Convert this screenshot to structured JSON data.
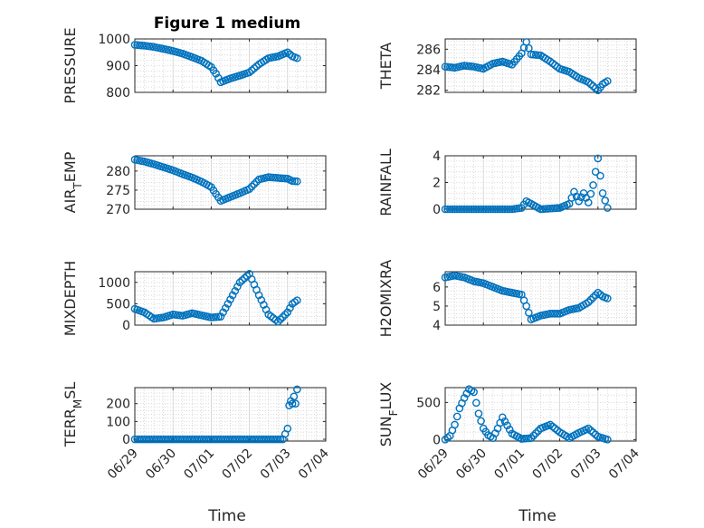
{
  "title": "Figure 1 medium",
  "x_tick_labels": [
    "06/29",
    "06/30",
    "07/01",
    "07/02",
    "07/03",
    "07/04"
  ],
  "xlabel": "Time",
  "marker_color": "#0072BD",
  "chart_data": [
    {
      "type": "scatter",
      "ylabel": "PRESSURE",
      "ylim": [
        800,
        1000
      ],
      "yticks": [
        800,
        900,
        1000
      ],
      "xlim": [
        "06/29",
        "07/04"
      ],
      "grid": true,
      "x": [
        "06/29 00:00",
        "06/29 06:00",
        "06/29 12:00",
        "06/29 18:00",
        "06/30 00:00",
        "06/30 06:00",
        "06/30 12:00",
        "06/30 18:00",
        "07/01 00:00",
        "07/01 03:00",
        "07/01 06:00",
        "07/01 12:00",
        "07/01 18:00",
        "07/02 00:00",
        "07/02 06:00",
        "07/02 12:00",
        "07/02 18:00",
        "07/03 00:00",
        "07/03 03:00",
        "07/03 06:00"
      ],
      "y": [
        978,
        975,
        970,
        963,
        955,
        945,
        932,
        918,
        895,
        870,
        838,
        852,
        863,
        875,
        905,
        928,
        935,
        950,
        935,
        928
      ]
    },
    {
      "type": "scatter",
      "ylabel": "THETA",
      "ylim": [
        281.8,
        287
      ],
      "yticks": [
        282,
        284,
        286
      ],
      "xlim": [
        "06/29",
        "07/04"
      ],
      "grid": true,
      "x": [
        "06/29 00:00",
        "06/29 06:00",
        "06/29 12:00",
        "06/29 18:00",
        "06/30 00:00",
        "06/30 06:00",
        "06/30 12:00",
        "06/30 18:00",
        "07/01 00:00",
        "07/01 03:00",
        "07/01 06:00",
        "07/01 12:00",
        "07/01 18:00",
        "07/02 00:00",
        "07/02 06:00",
        "07/02 12:00",
        "07/02 18:00",
        "07/03 00:00",
        "07/03 03:00",
        "07/03 06:00"
      ],
      "y": [
        284.3,
        284.2,
        284.4,
        284.3,
        284.1,
        284.6,
        284.8,
        284.5,
        285.6,
        286.7,
        285.5,
        285.4,
        284.8,
        284.1,
        283.8,
        283.2,
        282.8,
        282.0,
        282.6,
        282.9
      ]
    },
    {
      "type": "scatter",
      "ylabel": "AIR_TEMP",
      "ylim": [
        270,
        284
      ],
      "yticks": [
        270,
        275,
        280
      ],
      "xlim": [
        "06/29",
        "07/04"
      ],
      "grid": true,
      "x": [
        "06/29 00:00",
        "06/29 06:00",
        "06/29 12:00",
        "06/29 18:00",
        "06/30 00:00",
        "06/30 06:00",
        "06/30 12:00",
        "06/30 18:00",
        "07/01 00:00",
        "07/01 03:00",
        "07/01 06:00",
        "07/01 12:00",
        "07/01 18:00",
        "07/02 00:00",
        "07/02 06:00",
        "07/02 12:00",
        "07/02 18:00",
        "07/03 00:00",
        "07/03 03:00",
        "07/03 06:00"
      ],
      "y": [
        283,
        282.5,
        281.8,
        281,
        280.2,
        279.2,
        278.3,
        277.2,
        275.8,
        274,
        272.2,
        273.2,
        274.2,
        275.3,
        277.8,
        278.4,
        278.2,
        278.0,
        277.4,
        277.3
      ]
    },
    {
      "type": "scatter",
      "ylabel": "RAINFALL",
      "ylim": [
        0,
        4
      ],
      "yticks": [
        0,
        2,
        4
      ],
      "xlim": [
        "06/29",
        "07/04"
      ],
      "grid": true,
      "x": [
        "06/29 00:00",
        "06/29 12:00",
        "06/30 00:00",
        "06/30 12:00",
        "06/30 18:00",
        "07/01 00:00",
        "07/01 03:00",
        "07/01 06:00",
        "07/01 12:00",
        "07/02 00:00",
        "07/02 06:00",
        "07/02 09:00",
        "07/02 12:00",
        "07/02 15:00",
        "07/02 18:00",
        "07/02 21:00",
        "07/03 00:00",
        "07/03 03:00",
        "07/03 06:00"
      ],
      "y": [
        0,
        0,
        0,
        0,
        0,
        0.1,
        0.6,
        0.4,
        0,
        0.1,
        0.4,
        1.3,
        0.6,
        1.2,
        0.5,
        1.8,
        3.8,
        1.2,
        0.1
      ]
    },
    {
      "type": "scatter",
      "ylabel": "MIXDEPTH",
      "ylim": [
        0,
        1250
      ],
      "yticks": [
        0,
        500,
        1000
      ],
      "xlim": [
        "06/29",
        "07/04"
      ],
      "grid": true,
      "x": [
        "06/29 00:00",
        "06/29 06:00",
        "06/29 12:00",
        "06/29 18:00",
        "06/30 00:00",
        "06/30 06:00",
        "06/30 12:00",
        "06/30 18:00",
        "07/01 00:00",
        "07/01 06:00",
        "07/01 12:00",
        "07/01 18:00",
        "07/02 00:00",
        "07/02 06:00",
        "07/02 12:00",
        "07/02 18:00",
        "07/03 00:00",
        "07/03 03:00",
        "07/03 06:00"
      ],
      "y": [
        380,
        300,
        150,
        180,
        250,
        220,
        280,
        230,
        180,
        200,
        600,
        1000,
        1200,
        700,
        250,
        80,
        300,
        500,
        580
      ]
    },
    {
      "type": "scatter",
      "ylabel": "H2OMIXRA",
      "ylim": [
        4,
        6.8
      ],
      "yticks": [
        4,
        5,
        6
      ],
      "xlim": [
        "06/29",
        "07/04"
      ],
      "grid": true,
      "x": [
        "06/29 00:00",
        "06/29 06:00",
        "06/29 12:00",
        "06/29 18:00",
        "06/30 00:00",
        "06/30 06:00",
        "06/30 12:00",
        "06/30 18:00",
        "07/01 00:00",
        "07/01 03:00",
        "07/01 06:00",
        "07/01 12:00",
        "07/01 18:00",
        "07/02 00:00",
        "07/02 06:00",
        "07/02 12:00",
        "07/02 18:00",
        "07/03 00:00",
        "07/03 03:00",
        "07/03 06:00"
      ],
      "y": [
        6.5,
        6.6,
        6.5,
        6.3,
        6.2,
        6.0,
        5.8,
        5.7,
        5.6,
        5.0,
        4.3,
        4.5,
        4.6,
        4.6,
        4.8,
        4.9,
        5.2,
        5.7,
        5.5,
        5.4
      ]
    },
    {
      "type": "scatter",
      "ylabel": "TERR_MSL",
      "ylim": [
        -10,
        290
      ],
      "yticks": [
        0,
        100,
        200
      ],
      "xlim": [
        "06/29",
        "07/04"
      ],
      "grid": true,
      "x": [
        "06/29 00:00",
        "06/29 12:00",
        "06/30 00:00",
        "06/30 12:00",
        "07/01 00:00",
        "07/01 12:00",
        "07/02 00:00",
        "07/02 12:00",
        "07/02 21:00",
        "07/03 00:00",
        "07/03 01:00",
        "07/03 02:00",
        "07/03 03:00",
        "07/03 04:00",
        "07/03 05:00",
        "07/03 06:00"
      ],
      "y": [
        0,
        0,
        0,
        0,
        0,
        0,
        0,
        0,
        0,
        60,
        190,
        215,
        200,
        240,
        200,
        280
      ]
    },
    {
      "type": "scatter",
      "ylabel": "SUN_FLUX",
      "ylim": [
        -20,
        700
      ],
      "yticks": [
        0,
        500
      ],
      "xlim": [
        "06/29",
        "07/04"
      ],
      "grid": true,
      "x": [
        "06/29 00:00",
        "06/29 03:00",
        "06/29 06:00",
        "06/29 09:00",
        "06/29 12:00",
        "06/29 15:00",
        "06/29 18:00",
        "06/29 21:00",
        "06/30 00:00",
        "06/30 03:00",
        "06/30 06:00",
        "06/30 09:00",
        "06/30 12:00",
        "06/30 18:00",
        "07/01 00:00",
        "07/01 06:00",
        "07/01 12:00",
        "07/01 18:00",
        "07/02 00:00",
        "07/02 06:00",
        "07/02 12:00",
        "07/02 18:00",
        "07/03 00:00",
        "07/03 06:00"
      ],
      "y": [
        0,
        50,
        200,
        420,
        560,
        680,
        640,
        350,
        150,
        60,
        20,
        150,
        300,
        80,
        10,
        20,
        150,
        200,
        100,
        20,
        90,
        150,
        40,
        0
      ]
    }
  ]
}
